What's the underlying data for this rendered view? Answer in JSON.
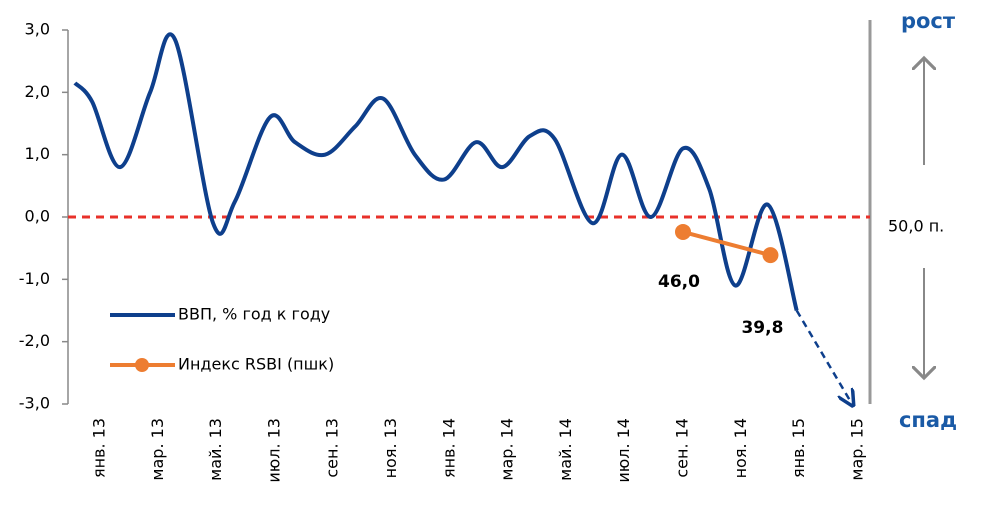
{
  "chart_data": {
    "type": "line",
    "categories": [
      "янв. 13",
      null,
      "мар. 13",
      null,
      "май. 13",
      null,
      "июл. 13",
      null,
      "сен. 13",
      null,
      "ноя. 13",
      null,
      "янв. 14",
      null,
      "мар. 14",
      null,
      "май. 14",
      null,
      "июл. 14",
      null,
      "сен. 14",
      null,
      "ноя. 14",
      null,
      "янв. 15",
      null,
      "мар. 15"
    ],
    "ylim": [
      -3,
      3
    ],
    "yticks": [
      {
        "value": 3,
        "label": "3,0"
      },
      {
        "value": 2,
        "label": "2,0"
      },
      {
        "value": 1,
        "label": "1,0"
      },
      {
        "value": 0,
        "label": "0,0"
      },
      {
        "value": -1,
        "label": "-1,0"
      },
      {
        "value": -2,
        "label": "-2,0"
      },
      {
        "value": -3,
        "label": "-3,0"
      }
    ],
    "y2lim": [
      0,
      100
    ],
    "y2ticks": [
      {
        "value": 50,
        "label": "50,0 п."
      }
    ],
    "hline": 0,
    "hline_color": "#e8312a",
    "legend": "lower left",
    "series": [
      {
        "name": "ВВП, % год к году",
        "color": "#0e3f8c",
        "x": [
          -0.86,
          -0.27,
          0.69,
          1.72,
          2.57,
          3.88,
          4.63,
          5.83,
          6.69,
          7.72,
          8.75,
          9.71,
          10.8,
          11.8,
          12.9,
          13.8,
          14.75,
          15.6,
          16.9,
          17.9,
          18.9,
          20.0,
          20.9,
          21.8,
          22.9,
          23.9
        ],
        "values": [
          2.15,
          1.85,
          0.8,
          2.0,
          2.85,
          -0.1,
          0.25,
          1.6,
          1.2,
          1.0,
          1.45,
          1.9,
          1.0,
          0.6,
          1.2,
          0.8,
          1.3,
          1.25,
          -0.1,
          1.0,
          0.0,
          1.1,
          0.45,
          -1.1,
          0.2,
          -1.5
        ]
      },
      {
        "name": "Индекс RSBI (пшк)",
        "color": "#ed7d31",
        "axis": "y2",
        "marker": true,
        "x": [
          20,
          23
        ],
        "values": [
          46,
          39.8
        ],
        "value_labels": [
          "46,0",
          "39,8"
        ]
      },
      {
        "color": "#0e3f8c",
        "dashed": true,
        "arrow": true,
        "x": [
          23.9,
          25.8
        ],
        "values": [
          -1.5,
          -3.0
        ]
      }
    ],
    "annotations": [
      "рост",
      "спад"
    ]
  }
}
